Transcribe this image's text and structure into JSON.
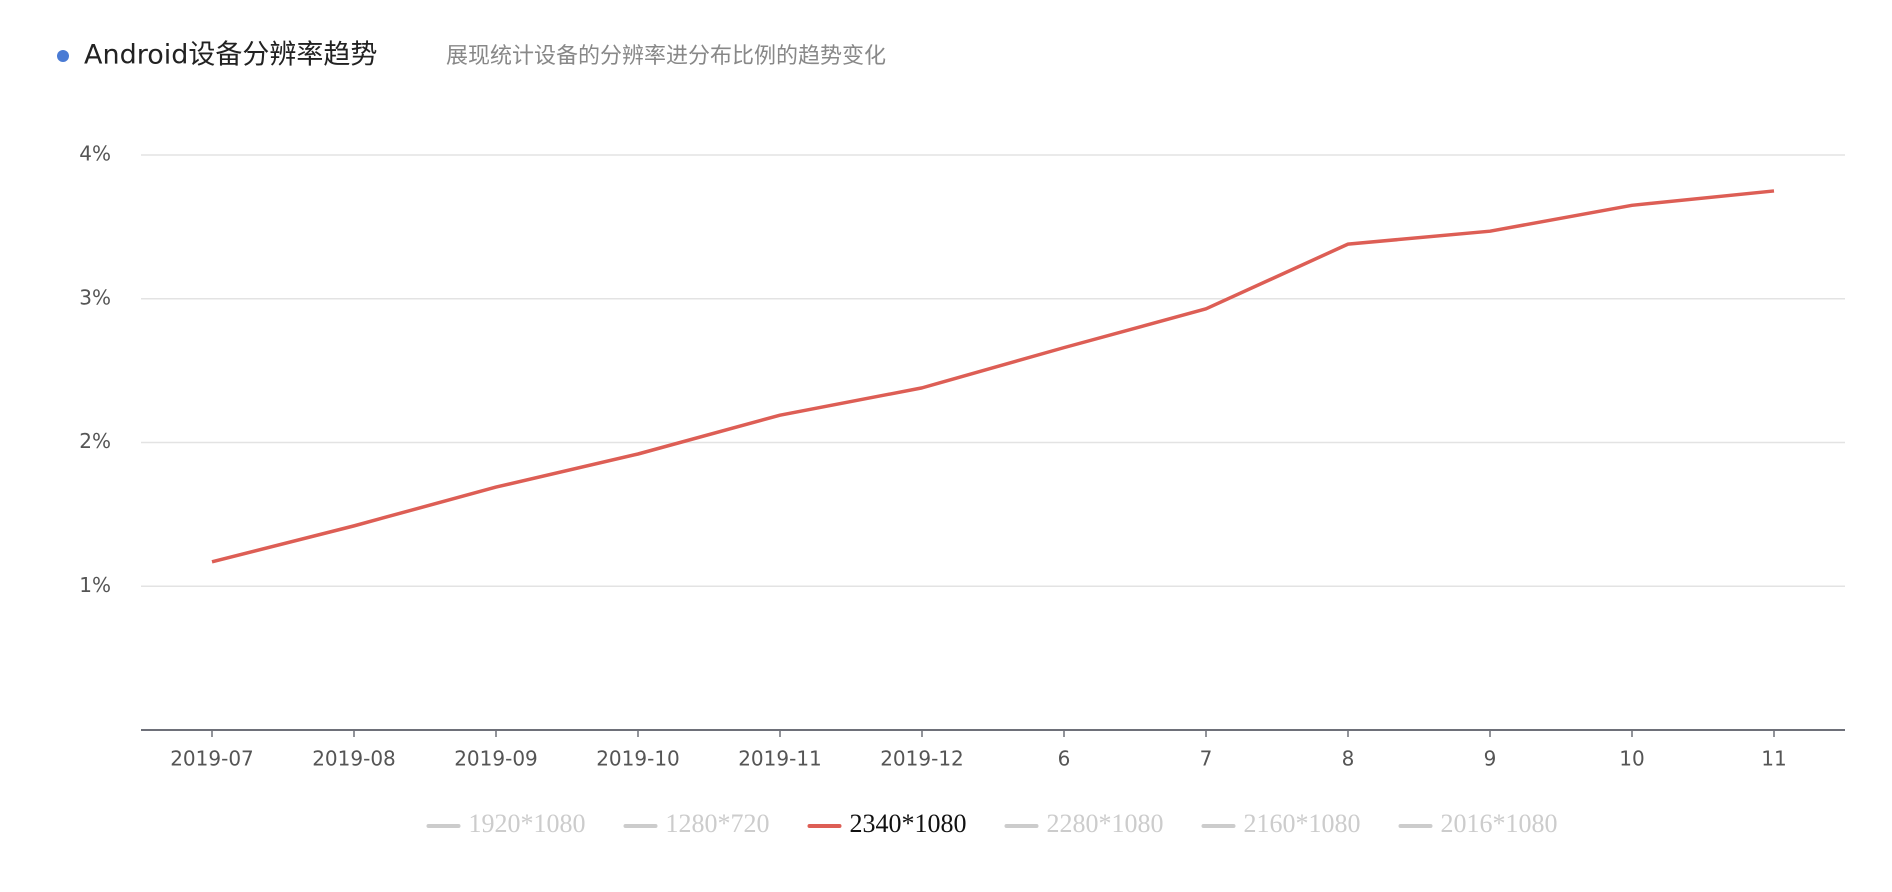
{
  "chart_data": {
    "type": "line",
    "title": "Android设备分辨率趋势",
    "subtitle": "展现统计设备的分辨率进分布比例的趋势变化",
    "categories": [
      "2019-07",
      "2019-08",
      "2019-09",
      "2019-10",
      "2019-11",
      "2019-12",
      "6",
      "7",
      "8",
      "9",
      "10",
      "11"
    ],
    "series": [
      {
        "name": "2340*1080",
        "color": "#dd5e55",
        "values": [
          1.17,
          1.42,
          1.69,
          1.92,
          2.19,
          2.38,
          2.66,
          2.93,
          3.38,
          3.47,
          3.65,
          3.75
        ]
      }
    ],
    "legend": [
      {
        "name": "1920*1080",
        "selected": false
      },
      {
        "name": "1280*720",
        "selected": false
      },
      {
        "name": "2340*1080",
        "selected": true
      },
      {
        "name": "2280*1080",
        "selected": false
      },
      {
        "name": "2160*1080",
        "selected": false
      },
      {
        "name": "2016*1080",
        "selected": false
      }
    ],
    "ylim": [
      0,
      4
    ],
    "yticks": [
      {
        "value": 1,
        "label": "1%"
      },
      {
        "value": 2,
        "label": "2%"
      },
      {
        "value": 3,
        "label": "3%"
      },
      {
        "value": 4,
        "label": "4%"
      }
    ],
    "grid": true
  }
}
